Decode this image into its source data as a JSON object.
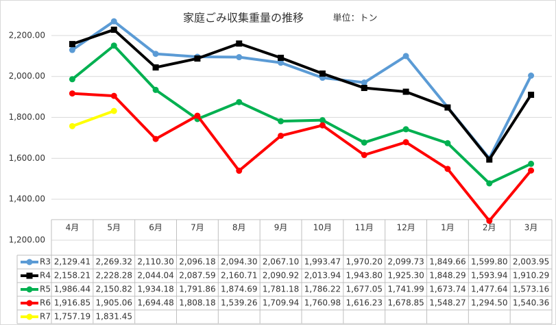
{
  "chart_data": {
    "type": "line",
    "title": "家庭ごみ収集重量の推移",
    "subtitle": "単位：トン",
    "categories": [
      "4月",
      "5月",
      "6月",
      "7月",
      "8月",
      "9月",
      "10月",
      "11月",
      "12月",
      "1月",
      "2月",
      "3月"
    ],
    "ylim": [
      1200,
      2300
    ],
    "yticks": [
      {
        "value": 1200,
        "label": "1,200.00"
      },
      {
        "value": 1400,
        "label": "1,400.00"
      },
      {
        "value": 1600,
        "label": "1,600.00"
      },
      {
        "value": 1800,
        "label": "1,800.00"
      },
      {
        "value": 2000,
        "label": "2,000.00"
      },
      {
        "value": 2200,
        "label": "2,200.00"
      }
    ],
    "grid": true,
    "series": [
      {
        "name": "R3",
        "color": "#5b9bd5",
        "marker": "circle",
        "values": [
          2129.41,
          2269.32,
          2110.3,
          2096.18,
          2094.3,
          2067.1,
          1993.47,
          1970.2,
          2099.73,
          1849.66,
          1599.8,
          2003.95
        ],
        "value_labels": [
          "2,129.41",
          "2,269.32",
          "2,110.30",
          "2,096.18",
          "2,094.30",
          "2,067.10",
          "1,993.47",
          "1,970.20",
          "2,099.73",
          "1,849.66",
          "1,599.80",
          "2,003.95"
        ]
      },
      {
        "name": "R4",
        "color": "#000000",
        "marker": "square",
        "values": [
          2158.21,
          2228.28,
          2044.04,
          2087.59,
          2160.71,
          2090.92,
          2013.94,
          1943.8,
          1925.3,
          1848.29,
          1593.94,
          1910.29
        ],
        "value_labels": [
          "2,158.21",
          "2,228.28",
          "2,044.04",
          "2,087.59",
          "2,160.71",
          "2,090.92",
          "2,013.94",
          "1,943.80",
          "1,925.30",
          "1,848.29",
          "1,593.94",
          "1,910.29"
        ]
      },
      {
        "name": "R5",
        "color": "#00b050",
        "marker": "circle",
        "values": [
          1986.44,
          2150.82,
          1934.18,
          1791.86,
          1874.69,
          1781.18,
          1786.22,
          1677.05,
          1741.99,
          1673.74,
          1477.64,
          1573.16
        ],
        "value_labels": [
          "1,986.44",
          "2,150.82",
          "1,934.18",
          "1,791.86",
          "1,874.69",
          "1,781.18",
          "1,786.22",
          "1,677.05",
          "1,741.99",
          "1,673.74",
          "1,477.64",
          "1,573.16"
        ]
      },
      {
        "name": "R6",
        "color": "#ff0000",
        "marker": "circle",
        "values": [
          1916.85,
          1905.06,
          1694.48,
          1808.18,
          1539.26,
          1709.94,
          1760.98,
          1616.23,
          1678.85,
          1548.27,
          1294.5,
          1540.36
        ],
        "value_labels": [
          "1,916.85",
          "1,905.06",
          "1,694.48",
          "1,808.18",
          "1,539.26",
          "1,709.94",
          "1,760.98",
          "1,616.23",
          "1,678.85",
          "1,548.27",
          "1,294.50",
          "1,540.36"
        ]
      },
      {
        "name": "R7",
        "color": "#ffff00",
        "marker": "circle",
        "values": [
          1757.19,
          1831.45,
          null,
          null,
          null,
          null,
          null,
          null,
          null,
          null,
          null,
          null
        ],
        "value_labels": [
          "1,757.19",
          "1,831.45",
          null,
          null,
          null,
          null,
          null,
          null,
          null,
          null,
          null,
          null
        ]
      }
    ]
  }
}
